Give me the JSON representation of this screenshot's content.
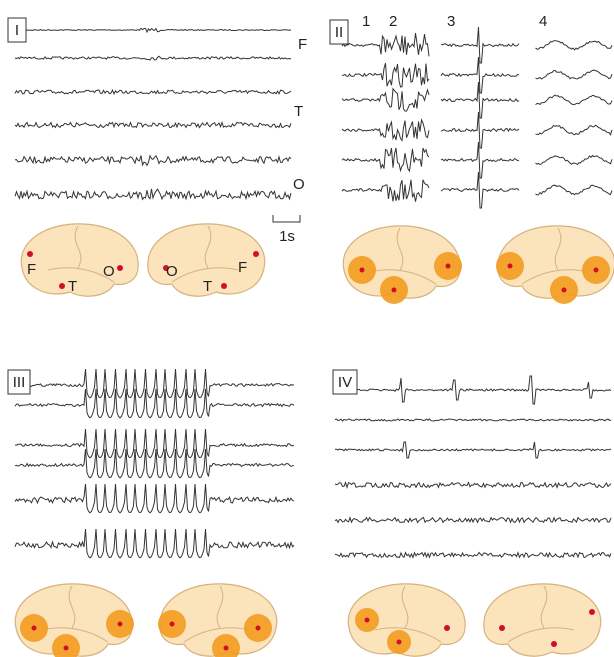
{
  "panels": [
    {
      "label": "I",
      "channel_labels": [
        "F",
        "T",
        "O"
      ],
      "scale_label": "1s",
      "electrode_labels": [
        "F",
        "T",
        "O",
        "O",
        "T",
        "F"
      ]
    },
    {
      "label": "II",
      "phase_labels": [
        "1",
        "2",
        "3",
        "4"
      ]
    },
    {
      "label": "III"
    },
    {
      "label": "IV"
    }
  ]
}
